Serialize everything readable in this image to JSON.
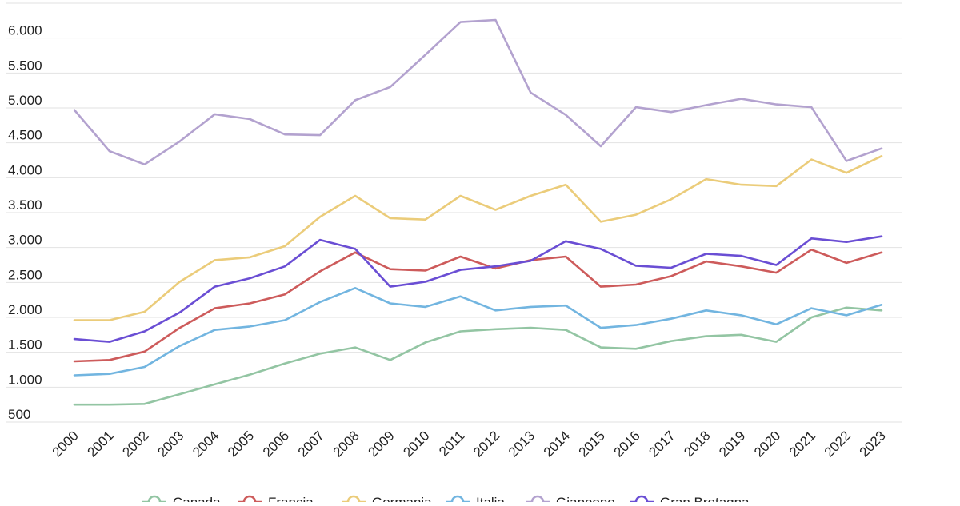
{
  "chart_data": {
    "type": "line",
    "categories": [
      "2000",
      "2001",
      "2002",
      "2003",
      "2004",
      "2005",
      "2006",
      "2007",
      "2008",
      "2009",
      "2010",
      "2011",
      "2012",
      "2013",
      "2014",
      "2015",
      "2016",
      "2017",
      "2018",
      "2019",
      "2020",
      "2021",
      "2022",
      "2023"
    ],
    "ylim": [
      500,
      6500
    ],
    "yticks": [
      500,
      1000,
      1500,
      2000,
      2500,
      3000,
      3500,
      4000,
      4500,
      5000,
      5500,
      6000
    ],
    "ytick_labels": [
      "500",
      "1.000",
      "1.500",
      "2.000",
      "2.500",
      "3.000",
      "3.500",
      "4.000",
      "4.500",
      "5.000",
      "5.500",
      "6.000"
    ],
    "grid": true,
    "legend_position": "bottom",
    "series": [
      {
        "name": "Canada",
        "color": "#93c5a3",
        "values": [
          750,
          750,
          760,
          900,
          1040,
          1180,
          1340,
          1480,
          1570,
          1390,
          1640,
          1800,
          1830,
          1850,
          1820,
          1570,
          1550,
          1660,
          1730,
          1750,
          1650,
          2000,
          2140,
          2100
        ]
      },
      {
        "name": "Francia",
        "color": "#cd5b5b",
        "values": [
          1370,
          1390,
          1510,
          1850,
          2130,
          2200,
          2330,
          2660,
          2930,
          2690,
          2670,
          2870,
          2700,
          2820,
          2870,
          2440,
          2470,
          2590,
          2800,
          2730,
          2640,
          2970,
          2780,
          2930
        ]
      },
      {
        "name": "Germania",
        "color": "#ebcc7a",
        "values": [
          1960,
          1960,
          2080,
          2510,
          2820,
          2860,
          3020,
          3440,
          3740,
          3420,
          3400,
          3740,
          3540,
          3740,
          3900,
          3370,
          3470,
          3690,
          3980,
          3900,
          3880,
          4260,
          4070,
          4310
        ]
      },
      {
        "name": "Italia",
        "color": "#72b5e0",
        "values": [
          1170,
          1190,
          1290,
          1590,
          1820,
          1870,
          1960,
          2220,
          2420,
          2200,
          2150,
          2300,
          2100,
          2150,
          2170,
          1850,
          1890,
          1980,
          2100,
          2030,
          1900,
          2130,
          2030,
          2180
        ]
      },
      {
        "name": "Giappone",
        "color": "#b3a2cf",
        "values": [
          4970,
          4380,
          4190,
          4520,
          4910,
          4840,
          4620,
          4610,
          5110,
          5300,
          5760,
          6230,
          6260,
          5220,
          4900,
          4450,
          5010,
          4940,
          5040,
          5130,
          5050,
          5010,
          4240,
          4420
        ]
      },
      {
        "name": "Gran Bretagna",
        "color": "#6a4ed4",
        "values": [
          1690,
          1650,
          1800,
          2070,
          2440,
          2560,
          2730,
          3110,
          2980,
          2440,
          2510,
          2680,
          2730,
          2810,
          3090,
          2980,
          2740,
          2710,
          2910,
          2880,
          2750,
          3130,
          3080,
          3160
        ]
      }
    ]
  }
}
